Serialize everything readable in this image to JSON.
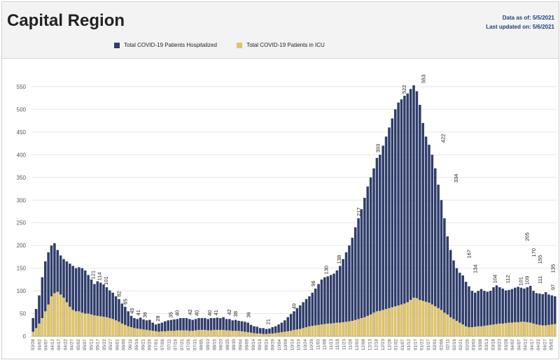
{
  "header": {
    "title": "Capital Region",
    "data_as_of": "Data as of: 5/5/2021",
    "last_updated": "Last updated on: 5/6/2021"
  },
  "colors": {
    "hospitalized": "#2f3d6b",
    "icu": "#e0c46a",
    "grid": "#e6e6e6",
    "axis_text": "#555555"
  },
  "chart_data": {
    "type": "bar",
    "title": "",
    "xlabel": "",
    "ylabel": "",
    "ylim": [
      0,
      590
    ],
    "yticks": [
      0,
      50,
      100,
      150,
      200,
      250,
      300,
      350,
      400,
      450,
      500,
      550
    ],
    "grid": true,
    "legend_position": "top",
    "x_tick_labels": [
      "03/28",
      "04/02",
      "04/07",
      "04/12",
      "04/17",
      "04/22",
      "04/27",
      "05/02",
      "05/07",
      "05/12",
      "05/17",
      "05/22",
      "05/27",
      "06/01",
      "06/06",
      "06/11",
      "06/16",
      "06/21",
      "06/26",
      "07/01",
      "07/06",
      "07/11",
      "07/16",
      "07/21",
      "07/26",
      "07/31",
      "08/05",
      "08/10",
      "08/15",
      "08/20",
      "08/25",
      "08/30",
      "09/04",
      "09/09",
      "09/14",
      "09/19",
      "09/24",
      "09/29",
      "10/04",
      "10/09",
      "10/14",
      "10/19",
      "10/24",
      "10/29",
      "11/03",
      "11/08",
      "11/13",
      "11/18",
      "11/23",
      "11/28",
      "12/03",
      "12/08",
      "12/13",
      "12/18",
      "12/23",
      "12/28",
      "01/02",
      "01/07",
      "01/12",
      "01/17",
      "01/22",
      "01/27",
      "02/01",
      "02/06",
      "02/11",
      "02/16",
      "02/21",
      "02/26",
      "03/03",
      "03/08",
      "03/13",
      "03/18",
      "03/23",
      "03/28",
      "04/02",
      "04/07",
      "04/12",
      "04/17",
      "04/22",
      "04/27",
      "05/02"
    ],
    "series": [
      {
        "name": "Total COVID-19 Patients Hospitalized",
        "values": [
          40,
          60,
          90,
          130,
          165,
          185,
          200,
          205,
          190,
          178,
          170,
          165,
          160,
          155,
          150,
          152,
          150,
          145,
          135,
          125,
          115,
          121,
          118,
          114,
          108,
          101,
          96,
          88,
          82,
          72,
          65,
          55,
          45,
          40,
          38,
          41,
          37,
          35,
          36,
          30,
          26,
          28,
          30,
          33,
          35,
          36,
          37,
          38,
          40,
          40,
          40,
          38,
          36,
          38,
          40,
          40,
          40,
          38,
          40,
          40,
          41,
          40,
          42,
          38,
          38,
          35,
          36,
          34,
          33,
          32,
          30,
          25,
          22,
          21,
          18,
          18,
          16,
          17,
          20,
          22,
          26,
          30,
          35,
          42,
          49,
          55,
          62,
          68,
          75,
          82,
          88,
          96,
          105,
          115,
          125,
          130,
          132,
          135,
          138,
          145,
          155,
          170,
          185,
          200,
          217,
          240,
          260,
          280,
          305,
          330,
          350,
          370,
          393,
          400,
          420,
          440,
          460,
          480,
          500,
          515,
          522,
          530,
          535,
          545,
          553,
          540,
          510,
          470,
          440,
          422,
          400,
          370,
          334,
          300,
          260,
          220,
          190,
          167,
          150,
          140,
          134,
          120,
          110,
          100,
          96,
          100,
          104,
          100,
          98,
          100,
          108,
          112,
          108,
          105,
          101,
          102,
          104,
          107,
          109,
          107,
          105,
          108,
          111,
          100,
          95,
          94,
          93,
          97,
          92,
          90,
          88
        ],
        "labeled_points": [
          {
            "x": "04/12",
            "value": 205
          },
          {
            "x": "04/17",
            "value": 170
          },
          {
            "x": "04/22",
            "value": 155
          },
          {
            "x": "05/02",
            "value": 135
          },
          {
            "x": "05/12",
            "value": 121
          },
          {
            "x": "05/17",
            "value": 114
          },
          {
            "x": "05/22",
            "value": 101
          },
          {
            "x": "06/01",
            "value": 82
          },
          {
            "x": "06/06",
            "value": 65
          },
          {
            "x": "06/11",
            "value": 45
          },
          {
            "x": "06/16",
            "value": 41
          },
          {
            "x": "06/21",
            "value": 36
          },
          {
            "x": "07/01",
            "value": 28
          },
          {
            "x": "07/11",
            "value": 35
          },
          {
            "x": "07/16",
            "value": 40
          },
          {
            "x": "07/26",
            "value": 42
          },
          {
            "x": "07/31",
            "value": 40
          },
          {
            "x": "08/10",
            "value": 40
          },
          {
            "x": "08/15",
            "value": 41
          },
          {
            "x": "08/25",
            "value": 42
          },
          {
            "x": "08/30",
            "value": 38
          },
          {
            "x": "09/09",
            "value": 36
          },
          {
            "x": "09/24",
            "value": 21
          },
          {
            "x": "10/14",
            "value": 49
          },
          {
            "x": "10/29",
            "value": 96
          },
          {
            "x": "11/08",
            "value": 130
          },
          {
            "x": "11/18",
            "value": 138
          },
          {
            "x": "12/03",
            "value": 217
          },
          {
            "x": "12/18",
            "value": 393
          },
          {
            "x": "01/07",
            "value": 522
          },
          {
            "x": "01/22",
            "value": 553
          },
          {
            "x": "02/06",
            "value": 422
          },
          {
            "x": "02/16",
            "value": 334
          },
          {
            "x": "02/26",
            "value": 167
          },
          {
            "x": "03/03",
            "value": 134
          },
          {
            "x": "03/18",
            "value": 104
          },
          {
            "x": "03/28",
            "value": 112
          },
          {
            "x": "04/07",
            "value": 101
          },
          {
            "x": "04/12",
            "value": 109
          },
          {
            "x": "04/22",
            "value": 111
          },
          {
            "x": "05/02",
            "value": 97
          }
        ]
      },
      {
        "name": "Total COVID-19 Patients in ICU",
        "values": [
          10,
          18,
          28,
          40,
          55,
          70,
          88,
          95,
          98,
          92,
          85,
          75,
          65,
          58,
          55,
          55,
          52,
          50,
          50,
          48,
          46,
          45,
          44,
          43,
          42,
          40,
          38,
          35,
          32,
          28,
          25,
          22,
          20,
          18,
          17,
          16,
          15,
          14,
          13,
          12,
          11,
          10,
          11,
          11,
          12,
          12,
          12,
          13,
          13,
          13,
          13,
          12,
          12,
          13,
          14,
          14,
          14,
          13,
          13,
          14,
          14,
          14,
          14,
          13,
          13,
          12,
          12,
          12,
          11,
          10,
          9,
          8,
          7,
          6,
          6,
          5,
          5,
          6,
          6,
          7,
          8,
          9,
          10,
          11,
          12,
          14,
          15,
          16,
          18,
          20,
          22,
          23,
          24,
          25,
          26,
          27,
          28,
          28,
          29,
          30,
          30,
          31,
          32,
          33,
          34,
          36,
          38,
          40,
          42,
          45,
          48,
          52,
          55,
          56,
          58,
          60,
          62,
          64,
          66,
          68,
          70,
          72,
          75,
          80,
          85,
          84,
          80,
          78,
          76,
          74,
          70,
          66,
          62,
          58,
          52,
          48,
          42,
          38,
          34,
          30,
          26,
          22,
          20,
          20,
          21,
          22,
          22,
          23,
          24,
          25,
          26,
          27,
          28,
          28,
          29,
          30,
          30,
          31,
          31,
          32,
          32,
          31,
          30,
          28,
          26,
          25,
          24,
          24,
          25,
          26,
          27
        ]
      }
    ]
  }
}
